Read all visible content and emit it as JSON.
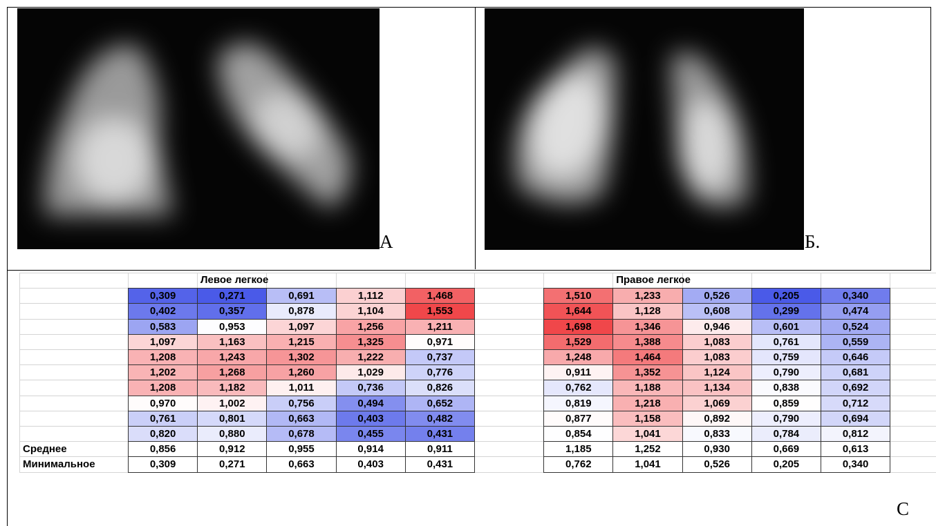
{
  "panels": [
    {
      "label": "А"
    },
    {
      "label": "Б."
    },
    {
      "label": "С"
    }
  ],
  "table": {
    "headers": [
      "Левое легкое",
      "Правое легкое"
    ],
    "color_scale": [
      "#4a5ae8",
      "#ffffff",
      "#f0474a"
    ],
    "rows": [
      [
        "0,309",
        "0,271",
        "0,691",
        "1,112",
        "1,468",
        "1,510",
        "1,233",
        "0,526",
        "0,205",
        "0,340"
      ],
      [
        "0,402",
        "0,357",
        "0,878",
        "1,104",
        "1,553",
        "1,644",
        "1,128",
        "0,608",
        "0,299",
        "0,474"
      ],
      [
        "0,583",
        "0,953",
        "1,097",
        "1,256",
        "1,211",
        "1,698",
        "1,346",
        "0,946",
        "0,601",
        "0,524"
      ],
      [
        "1,097",
        "1,163",
        "1,215",
        "1,325",
        "0,971",
        "1,529",
        "1,388",
        "1,083",
        "0,761",
        "0,559"
      ],
      [
        "1,208",
        "1,243",
        "1,302",
        "1,222",
        "0,737",
        "1,248",
        "1,464",
        "1,083",
        "0,759",
        "0,646"
      ],
      [
        "1,202",
        "1,268",
        "1,260",
        "1,029",
        "0,776",
        "0,911",
        "1,352",
        "1,124",
        "0,790",
        "0,681"
      ],
      [
        "1,208",
        "1,182",
        "1,011",
        "0,736",
        "0,826",
        "0,762",
        "1,188",
        "1,134",
        "0,838",
        "0,692"
      ],
      [
        "0,970",
        "1,002",
        "0,756",
        "0,494",
        "0,652",
        "0,819",
        "1,218",
        "1,069",
        "0,859",
        "0,712"
      ],
      [
        "0,761",
        "0,801",
        "0,663",
        "0,403",
        "0,482",
        "0,877",
        "1,158",
        "0,892",
        "0,790",
        "0,694"
      ],
      [
        "0,820",
        "0,880",
        "0,678",
        "0,455",
        "0,431",
        "0,854",
        "1,041",
        "0,833",
        "0,784",
        "0,812"
      ]
    ],
    "summary": [
      {
        "label": "Среднее",
        "values": [
          "0,856",
          "0,912",
          "0,955",
          "0,914",
          "0,911",
          "1,185",
          "1,252",
          "0,930",
          "0,669",
          "0,613"
        ]
      },
      {
        "label": "Минимальное",
        "values": [
          "0,309",
          "0,271",
          "0,663",
          "0,403",
          "0,431",
          "0,762",
          "1,041",
          "0,526",
          "0,205",
          "0,340"
        ]
      }
    ]
  }
}
